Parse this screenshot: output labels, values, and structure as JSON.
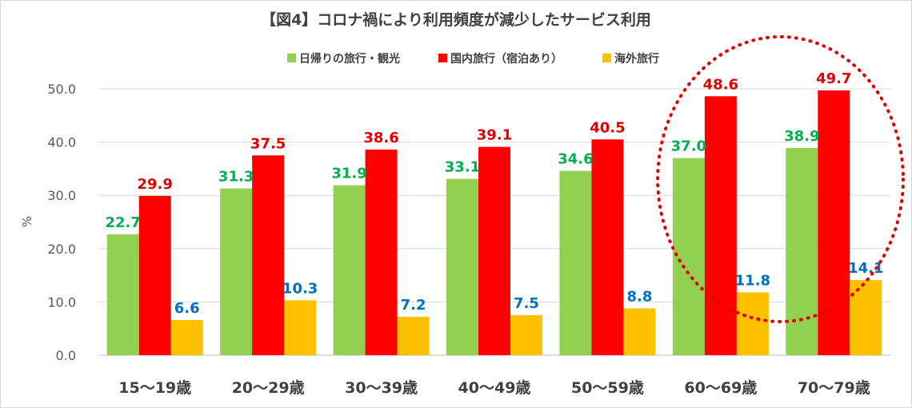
{
  "chart_data": {
    "type": "bar",
    "title": "【図4】コロナ禍により利用頻度が減少したサービス利用",
    "ylabel": "%",
    "xlabel": "",
    "ylim": [
      0,
      50
    ],
    "yticks": [
      "0.0",
      "10.0",
      "20.0",
      "30.0",
      "40.0",
      "50.0"
    ],
    "grid": true,
    "legend_position": "top",
    "categories": [
      "15～19歳",
      "20～29歳",
      "30～39歳",
      "40～49歳",
      "50～59歳",
      "60～69歳",
      "70～79歳"
    ],
    "series": [
      {
        "name": "日帰りの旅行・観光",
        "color": "#92d050",
        "label_color": "#00b050",
        "values": [
          22.7,
          31.3,
          31.9,
          33.1,
          34.6,
          37.0,
          38.9
        ]
      },
      {
        "name": "国内旅行（宿泊あり）",
        "color": "#ff0000",
        "label_color": "#e00000",
        "values": [
          29.9,
          37.5,
          38.6,
          39.1,
          40.5,
          48.6,
          49.7
        ]
      },
      {
        "name": "海外旅行",
        "color": "#ffc000",
        "label_color": "#0070c0",
        "values": [
          6.6,
          10.3,
          7.2,
          7.5,
          8.8,
          11.8,
          14.1
        ]
      }
    ],
    "annotation": {
      "shape": "dotted-ellipse",
      "color": "#e00000",
      "highlights": [
        "60～69歳",
        "70～79歳"
      ]
    }
  }
}
